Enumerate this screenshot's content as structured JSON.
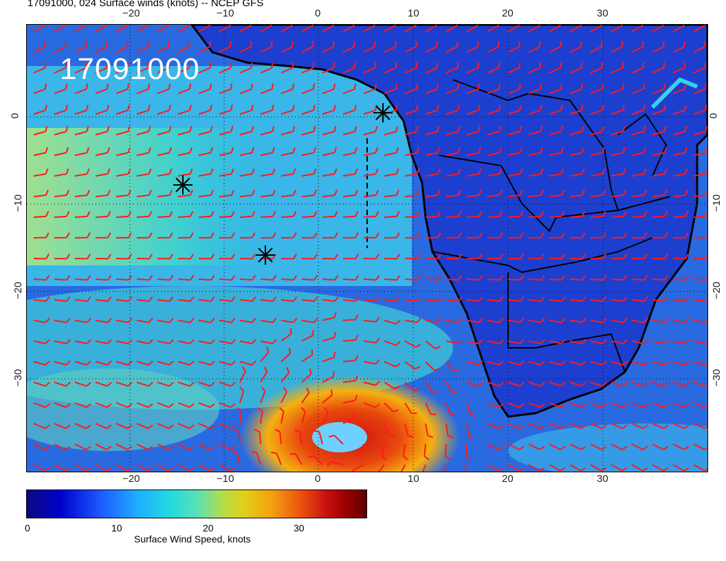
{
  "header": {
    "title": "17091000, 024 Surface winds (knots) -- NCEP GFS"
  },
  "map": {
    "stamp": "17091000"
  },
  "axes": {
    "top_lon_ticks": [
      "−20",
      "−10",
      "0",
      "10",
      "20",
      "30"
    ],
    "bottom_lon_ticks": [
      "−20",
      "−10",
      "0",
      "10",
      "20",
      "30"
    ],
    "left_lat_ticks": [
      "0",
      "−10",
      "−20",
      "−30"
    ],
    "right_lat_ticks": [
      "0",
      "−10",
      "−20",
      "−30"
    ]
  },
  "colorbar": {
    "ticks": [
      "0",
      "10",
      "20",
      "30"
    ],
    "label": "Surface Wind Speed, knots"
  },
  "markers": [
    {
      "name": "marker-1"
    },
    {
      "name": "marker-2"
    },
    {
      "name": "marker-3"
    }
  ],
  "colors": {
    "ocean_low": "#1f4fd8",
    "land": "#1834c8",
    "barb": "#ff1a1a",
    "coast": "#000000"
  }
}
